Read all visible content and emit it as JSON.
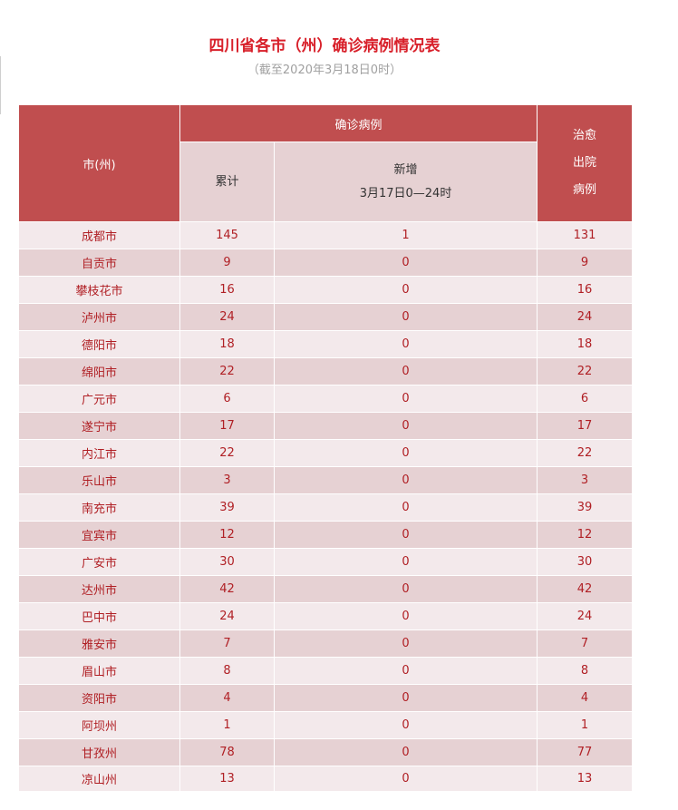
{
  "title": "四川省各市（州）确诊病例情况表",
  "subtitle": "（截至2020年3月18日0时）",
  "header": {
    "city": "市(州)",
    "confirmed": "确诊病例",
    "cumulative": "累计",
    "new_line1": "新增",
    "new_line2": "3月17日0—24时",
    "cured_line1": "治愈",
    "cured_line2": "出院",
    "cured_line3": "病例"
  },
  "rows": [
    {
      "city": "成都市",
      "total": "145",
      "new": "1",
      "cured": "131"
    },
    {
      "city": "自贡市",
      "total": "9",
      "new": "0",
      "cured": "9"
    },
    {
      "city": "攀枝花市",
      "total": "16",
      "new": "0",
      "cured": "16"
    },
    {
      "city": "泸州市",
      "total": "24",
      "new": "0",
      "cured": "24"
    },
    {
      "city": "德阳市",
      "total": "18",
      "new": "0",
      "cured": "18"
    },
    {
      "city": "绵阳市",
      "total": "22",
      "new": "0",
      "cured": "22"
    },
    {
      "city": "广元市",
      "total": "6",
      "new": "0",
      "cured": "6"
    },
    {
      "city": "遂宁市",
      "total": "17",
      "new": "0",
      "cured": "17"
    },
    {
      "city": "内江市",
      "total": "22",
      "new": "0",
      "cured": "22"
    },
    {
      "city": "乐山市",
      "total": "3",
      "new": "0",
      "cured": "3"
    },
    {
      "city": "南充市",
      "total": "39",
      "new": "0",
      "cured": "39"
    },
    {
      "city": "宜宾市",
      "total": "12",
      "new": "0",
      "cured": "12"
    },
    {
      "city": "广安市",
      "total": "30",
      "new": "0",
      "cured": "30"
    },
    {
      "city": "达州市",
      "total": "42",
      "new": "0",
      "cured": "42"
    },
    {
      "city": "巴中市",
      "total": "24",
      "new": "0",
      "cured": "24"
    },
    {
      "city": "雅安市",
      "total": "7",
      "new": "0",
      "cured": "7"
    },
    {
      "city": "眉山市",
      "total": "8",
      "new": "0",
      "cured": "8"
    },
    {
      "city": "资阳市",
      "total": "4",
      "new": "0",
      "cured": "4"
    },
    {
      "city": "阿坝州",
      "total": "1",
      "new": "0",
      "cured": "1"
    },
    {
      "city": "甘孜州",
      "total": "78",
      "new": "0",
      "cured": "77"
    },
    {
      "city": "凉山州",
      "total": "13",
      "new": "0",
      "cured": "13"
    }
  ],
  "colors": {
    "title": "#d8202a",
    "header_bg": "#c04e4f",
    "subheader_bg": "#e6d1d3",
    "row_light": "#f3e9eb",
    "row_dark": "#e6d1d3",
    "cell_text": "#b01f24"
  }
}
